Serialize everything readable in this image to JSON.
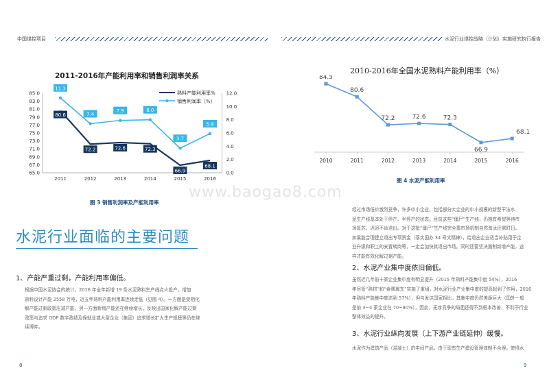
{
  "header": {
    "left_text": "中国煤控项目",
    "right_text": "水泥行业煤控战略（计划）实施研究执行报告"
  },
  "page_numbers": {
    "left": "8",
    "right": "9"
  },
  "watermark": "www.baogao8.com",
  "figure3": {
    "title": "2011-2016年产能利用率和销售利润率关系",
    "caption": "图 3  销售利润率及产能利用率",
    "legend": [
      "熟料产能利用率%",
      "销售利润率（%）"
    ]
  },
  "figure4": {
    "title": "2010-2016年全国水泥熟料产能利用率（%）",
    "caption": "图 4  水泥产能利用率"
  },
  "chart_data": [
    {
      "type": "line",
      "title": "2011-2016年产能利用率和销售利润率关系",
      "x": [
        "2011",
        "2012",
        "2013",
        "2014",
        "2015",
        "2016"
      ],
      "y_left_ticks": [
        "85.0",
        "83.0",
        "81.0",
        "79.0",
        "77.0",
        "75.0",
        "73.0",
        "71.0",
        "69.0",
        "67.0",
        "65.0"
      ],
      "y_right_ticks": [
        "12.0",
        "10.0",
        "8.0",
        "6.0",
        "4.0",
        "2.0",
        "0.0"
      ],
      "ylim_left": [
        65,
        85
      ],
      "ylim_right": [
        0,
        12
      ],
      "legend_position": "top-right",
      "grid": false,
      "series": [
        {
          "name": "熟料产能利用率%",
          "axis": "left",
          "color": "#17365d",
          "values": [
            80.6,
            72.2,
            72.6,
            72.3,
            66.9,
            68.1
          ],
          "labels": [
            "80.6",
            "72.2",
            "72.6",
            "72.3",
            "66.9",
            "68.1"
          ]
        },
        {
          "name": "销售利润率（%）",
          "axis": "right",
          "color": "#38b6e8",
          "values": [
            11.3,
            7.4,
            7.9,
            8.0,
            3.7,
            5.9
          ],
          "labels": [
            "11.3",
            "7.4",
            "7.9",
            "8.0",
            "3.7",
            "5.9"
          ]
        }
      ]
    },
    {
      "type": "line",
      "title": "2010-2016年全国水泥熟料产能利用率（%）",
      "x": [
        "2010",
        "2011",
        "2012",
        "2013",
        "2014",
        "2015",
        "2016"
      ],
      "ylim": [
        64,
        87
      ],
      "grid": false,
      "series": [
        {
          "values": [
            84.5,
            80.6,
            72.2,
            72.6,
            72.3,
            66.9,
            68.1
          ],
          "labels": [
            "84.5",
            "80.6",
            "72.2",
            "72.6",
            "72.3",
            "66.9",
            "68.1"
          ],
          "color": "#5b9bd5"
        }
      ]
    }
  ],
  "left_text": {
    "heading": "水泥行业面临的主要问题",
    "section1_title": "1、产能严重过剩，产能利用率偏低。",
    "section1_lines": [
      "根据中国水泥协会的统计，2016 年全年新增 19 条水泥熟料生产线点火投产，增加",
      "熟料设计产能 2558 万吨，近五年熟料产能利用率连续走低（见图 4）。一方面是受相化",
      "解产能过剩政策压减产能，另一方面新增产能还在继续增长，反映出国家化解产能过剩",
      "政策与追求 GDP 数字政绩及保就业或大型企业（集团）追求增长扩大生产规模等仍在继",
      "续博弈。"
    ]
  },
  "right_text": {
    "para1_lines": [
      "经过市场低价激烈竞争，许多中小企业，包括部分大企业的中小规模的新型干法水",
      "泥生产线基本处于停产、半停产的状态。目前这些“僵尸”生产线，仍抱有希望等待市",
      "场复苏，迟迟不肯退出。对于这批“僵尸”生产线完全靠市场机制自然淘汰还需时日。",
      "如果能合理建立退出专项资金（落实国办 34 号文精神），给退出企业适当补贴用于企",
      "业升级和职工的安置转岗等，一定会加快其退出市场。同时还要坚决遏制新增产能，这",
      "样才能有效化解过剩产能。"
    ],
    "section2_title": "2、水泥产业集中度依旧偏低。",
    "section2_lines": [
      "虽然近几年前十家企业集中度有明显提升（2015 年熟料产能集中度 54%），2016",
      "年尽管“熟材”和“金隅冀东”实施了重组，对水泥行业产业集中度的提高起到了作用，2016",
      "年熟料产能集中度达到 57%），但与发达国家相比，其集中度仍然差距巨大（国外一般",
      "是前 3~4 家企业在 70~80%），因此，无序竞争的局面还得不到根本改善，不利于行业",
      "整体效益的提升。"
    ],
    "section3_title": "3、水泥行业纵向发展（上下游产业链延伸）缓慢。",
    "section3_lines": [
      "水泥作为建筑产品（混凝土）的中间产品，由于现有生产建设管理体制不合理，使得水"
    ]
  }
}
